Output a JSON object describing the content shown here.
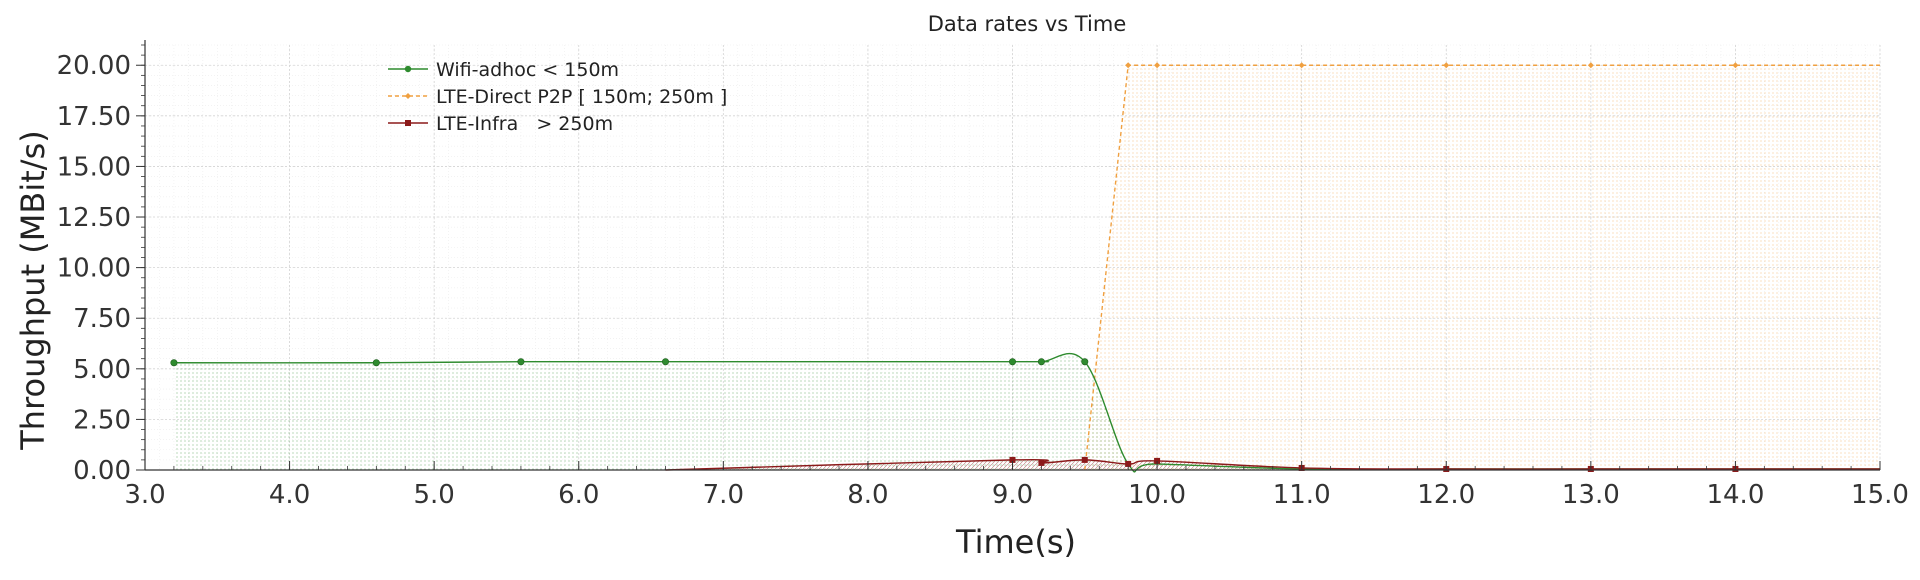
{
  "chart_data": {
    "type": "line",
    "title": "Data rates vs Time",
    "xlabel": "Time(s)",
    "ylabel": "Throughput (MBit/s)",
    "xlim": [
      3.0,
      15.0
    ],
    "ylim": [
      0.0,
      21.0
    ],
    "x_ticks": [
      "3.0",
      "4.0",
      "5.0",
      "6.0",
      "7.0",
      "8.0",
      "9.0",
      "10.0",
      "11.0",
      "12.0",
      "13.0",
      "14.0",
      "15.0"
    ],
    "x_tick_values": [
      3,
      4,
      5,
      6,
      7,
      8,
      9,
      10,
      11,
      12,
      13,
      14,
      15
    ],
    "y_ticks": [
      "0.00",
      "2.50",
      "5.00",
      "7.50",
      "10.00",
      "12.50",
      "15.00",
      "17.50",
      "20.00"
    ],
    "y_tick_values": [
      0,
      2.5,
      5,
      7.5,
      10,
      12.5,
      15,
      17.5,
      20
    ],
    "grid": true,
    "legend_position": "top-left",
    "series": [
      {
        "name": "Wifi-adhoc < 150m",
        "color": "#2e8b2e",
        "line_style": "solid",
        "marker": "circle",
        "fill": true,
        "x": [
          3.2,
          4.6,
          5.6,
          6.6,
          9.0,
          9.2,
          9.5,
          9.8,
          10.0,
          11.0,
          12.0,
          13.0,
          14.0,
          15.0
        ],
        "y": [
          5.3,
          5.3,
          5.35,
          5.35,
          5.35,
          5.35,
          5.35,
          0.3,
          0.3,
          0.05,
          0.05,
          0.05,
          0.05,
          0.05
        ],
        "marker_x": [
          3.2,
          4.6,
          5.6,
          6.6,
          9.0,
          9.2,
          9.5
        ]
      },
      {
        "name": "LTE-Direct P2P [ 150m; 250m ]",
        "color": "#f0a040",
        "line_style": "dashed",
        "marker": "diamond",
        "fill": true,
        "x": [
          9.5,
          9.8,
          10.0,
          11.0,
          12.0,
          13.0,
          14.0,
          15.0
        ],
        "y": [
          0.0,
          20.0,
          20.0,
          20.0,
          20.0,
          20.0,
          20.0,
          20.0
        ],
        "marker_x": [
          9.8,
          10.0,
          11.0,
          12.0,
          13.0,
          14.0
        ]
      },
      {
        "name": "LTE-Infra   > 250m",
        "color": "#8b1a1a",
        "line_style": "solid",
        "marker": "square",
        "fill": true,
        "x": [
          6.6,
          9.0,
          9.2,
          9.5,
          9.8,
          10.0,
          11.0,
          12.0,
          13.0,
          14.0,
          15.0
        ],
        "y": [
          0.0,
          0.5,
          0.35,
          0.5,
          0.3,
          0.45,
          0.1,
          0.05,
          0.05,
          0.05,
          0.05
        ],
        "marker_x": [
          9.0,
          9.2,
          9.5,
          9.8,
          10.0,
          11.0,
          12.0,
          13.0,
          14.0
        ]
      }
    ]
  }
}
